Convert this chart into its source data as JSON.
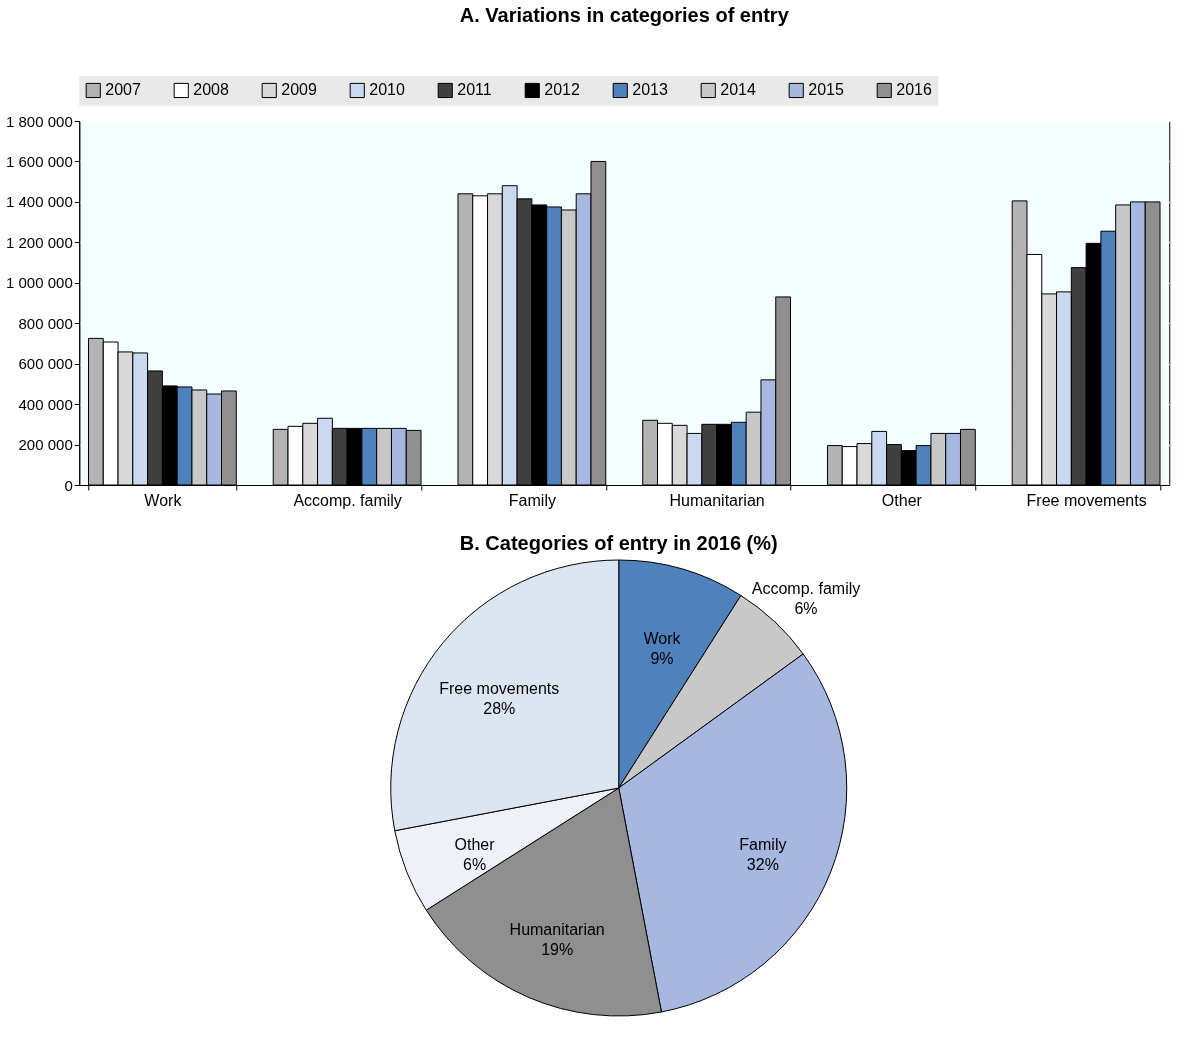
{
  "chart_data": [
    {
      "type": "bar",
      "title": "A. Variations in categories of entry",
      "categories": [
        "Work",
        "Accomp. family",
        "Family",
        "Humanitarian",
        "Other",
        "Free movements"
      ],
      "series": [
        {
          "name": "2007",
          "color": "#b3b3b3",
          "values": [
            725000,
            275000,
            1440000,
            320000,
            195000,
            1405000
          ]
        },
        {
          "name": "2008",
          "color": "#ffffff",
          "values": [
            707000,
            290000,
            1430000,
            305000,
            190000,
            1140000
          ]
        },
        {
          "name": "2009",
          "color": "#d9d9d9",
          "values": [
            658000,
            305000,
            1440000,
            295000,
            205000,
            945000
          ]
        },
        {
          "name": "2010",
          "color": "#c9daf0",
          "values": [
            653000,
            330000,
            1480000,
            255000,
            265000,
            955000
          ]
        },
        {
          "name": "2011",
          "color": "#404040",
          "values": [
            564000,
            280000,
            1415000,
            300000,
            200000,
            1075000
          ]
        },
        {
          "name": "2012",
          "color": "#000000",
          "values": [
            490000,
            280000,
            1385000,
            300000,
            170000,
            1195000
          ]
        },
        {
          "name": "2013",
          "color": "#4f81bd",
          "values": [
            485000,
            280000,
            1375000,
            310000,
            195000,
            1255000
          ]
        },
        {
          "name": "2014",
          "color": "#c8c8c8",
          "values": [
            470000,
            280000,
            1360000,
            360000,
            255000,
            1385000
          ]
        },
        {
          "name": "2015",
          "color": "#a6b8e0",
          "values": [
            450000,
            280000,
            1440000,
            520000,
            255000,
            1400000
          ]
        },
        {
          "name": "2016",
          "color": "#8f8f8f",
          "values": [
            465000,
            270000,
            1600000,
            930000,
            275000,
            1400000
          ]
        }
      ],
      "ylim": [
        0,
        1800000
      ],
      "yticks": [
        0,
        {
          "value": 200000,
          "label": "200 000"
        },
        {
          "value": 400000,
          "label": "400 000"
        },
        {
          "value": 600000,
          "label": "600 000"
        },
        {
          "value": 800000,
          "label": "800 000"
        },
        {
          "value": 1000000,
          "label": "1 000 000"
        },
        {
          "value": 1200000,
          "label": "1 200 000"
        },
        {
          "value": 1400000,
          "label": "1 400 000"
        },
        {
          "value": 1600000,
          "label": "1 600 000"
        },
        {
          "value": 1800000,
          "label": "1 800 000"
        }
      ],
      "grid": "y",
      "legend": "top"
    },
    {
      "type": "pie",
      "title": "B. Categories of entry in 2016 (%)",
      "categories": [
        "Work",
        "Accomp. family",
        "Family",
        "Humanitarian",
        "Other",
        "Free movements"
      ],
      "values": [
        9,
        6,
        32,
        19,
        6,
        28
      ],
      "value_labels": [
        "9%",
        "6%",
        "32%",
        "19%",
        "6%",
        "28%"
      ],
      "colors": [
        "#4f81bd",
        "#c8c8c8",
        "#a6b8e0",
        "#8f8f8f",
        "#eef1f8",
        "#dce6f2"
      ]
    }
  ]
}
